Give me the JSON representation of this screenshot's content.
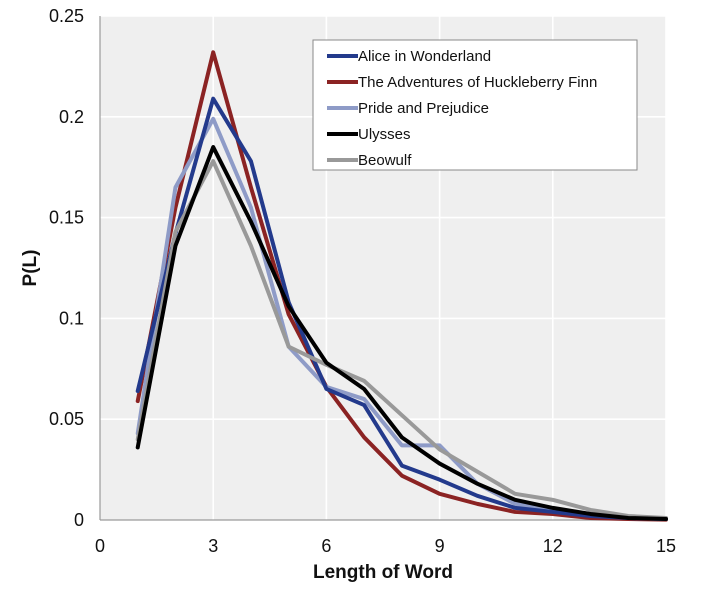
{
  "chart_data": {
    "type": "line",
    "title": "",
    "xlabel": "Length of Word",
    "ylabel": "P(L)",
    "xlim": [
      0,
      15
    ],
    "ylim": [
      0,
      0.25
    ],
    "xticks": [
      "0",
      "3",
      "6",
      "9",
      "12",
      "15"
    ],
    "yticks": [
      "0",
      "0.05",
      "0.1",
      "0.15",
      "0.2",
      "0.25"
    ],
    "grid": true,
    "legend_position": "top-right",
    "x": [
      1,
      2,
      3,
      4,
      5,
      6,
      7,
      8,
      9,
      10,
      11,
      12,
      13,
      14,
      15
    ],
    "series": [
      {
        "name": "Alice in Wonderland",
        "color": "#233a8c",
        "values": [
          0.064,
          0.142,
          0.209,
          0.178,
          0.108,
          0.065,
          0.057,
          0.027,
          0.02,
          0.012,
          0.006,
          0.004,
          0.002,
          0.001,
          0.0005
        ]
      },
      {
        "name": "The Adventures of Huckleberry Finn",
        "color": "#8b2323",
        "values": [
          0.059,
          0.155,
          0.232,
          0.165,
          0.102,
          0.066,
          0.041,
          0.022,
          0.013,
          0.008,
          0.004,
          0.003,
          0.001,
          0.0005,
          0.0002
        ]
      },
      {
        "name": "Pride and Prejudice",
        "color": "#8e9bc7",
        "values": [
          0.043,
          0.165,
          0.199,
          0.155,
          0.086,
          0.066,
          0.06,
          0.037,
          0.037,
          0.018,
          0.008,
          0.005,
          0.003,
          0.001,
          0.0005
        ]
      },
      {
        "name": "Ulysses",
        "color": "#000000",
        "values": [
          0.036,
          0.136,
          0.185,
          0.148,
          0.106,
          0.078,
          0.065,
          0.041,
          0.028,
          0.018,
          0.01,
          0.006,
          0.003,
          0.001,
          0.0005
        ]
      },
      {
        "name": "Beowulf",
        "color": "#999999",
        "values": [
          0.04,
          0.143,
          0.178,
          0.136,
          0.086,
          0.077,
          0.069,
          0.052,
          0.035,
          0.024,
          0.013,
          0.01,
          0.005,
          0.002,
          0.001
        ]
      }
    ]
  }
}
